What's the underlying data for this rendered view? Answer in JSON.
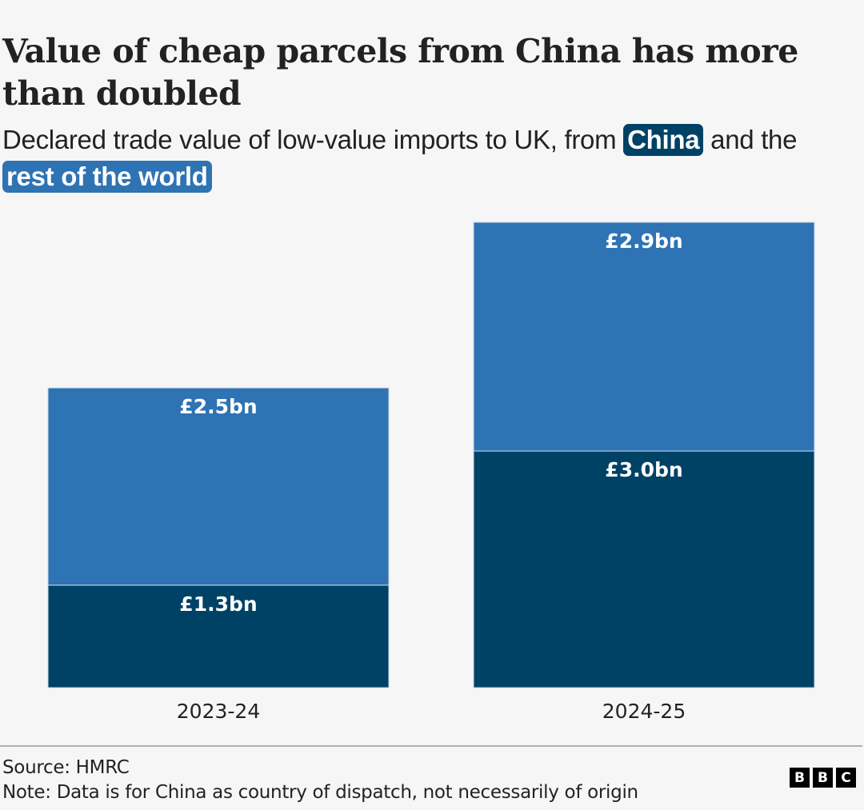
{
  "header": {
    "title": "Value of cheap parcels from China has more than doubled",
    "subtitle_prefix": "Declared trade value of low-value imports to UK, from ",
    "subtitle_china": "China",
    "subtitle_middle": " and the ",
    "subtitle_row": "rest of the world"
  },
  "footer": {
    "source": "Source: HMRC",
    "note": "Note: Data is for China as country of dispatch, not necessarily of origin",
    "logo_letters": [
      "B",
      "B",
      "C"
    ]
  },
  "colors": {
    "china": "#004266",
    "rest_of_world": "#2e73b3",
    "background": "#f6f6f6"
  },
  "chart_data": {
    "type": "bar",
    "stacked": true,
    "title": "Value of cheap parcels from China has more than doubled",
    "subtitle": "Declared trade value of low-value imports to UK, from China and the rest of the world",
    "categories": [
      "2023-24",
      "2024-25"
    ],
    "series": [
      {
        "name": "China",
        "color": "#004266",
        "values": [
          1.3,
          3.0
        ],
        "labels": [
          "£1.3bn",
          "£3.0bn"
        ]
      },
      {
        "name": "Rest of the world",
        "color": "#2e73b3",
        "values": [
          2.5,
          2.9
        ],
        "labels": [
          "£2.5bn",
          "£2.9bn"
        ]
      }
    ],
    "unit": "£bn",
    "xlabel": "",
    "ylabel": "",
    "ylim": [
      0,
      5.9
    ],
    "grid": false,
    "legend": "inline in subtitle"
  }
}
